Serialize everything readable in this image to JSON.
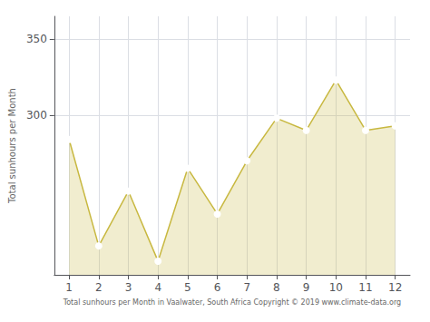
{
  "chart_data": {
    "type": "area",
    "x": [
      1,
      2,
      3,
      4,
      5,
      6,
      7,
      8,
      9,
      10,
      11,
      12
    ],
    "values": [
      284,
      214,
      250,
      204,
      265,
      235,
      270,
      298,
      290,
      323,
      290,
      293
    ],
    "color": "#C8B840",
    "marker": "circle",
    "xlabel": "Total sunhours per Month in Vaalwater, South Africa Copyright © 2019 www.climate-data.org",
    "ylabel": "Total sunhours per Month",
    "xlim": [
      0.5,
      12.5
    ],
    "xticks": [
      1,
      2,
      3,
      4,
      5,
      6,
      7,
      8,
      9,
      10,
      11,
      12
    ],
    "ylim": [
      195,
      365
    ],
    "yticks": [
      300,
      350
    ],
    "grid": true
  }
}
